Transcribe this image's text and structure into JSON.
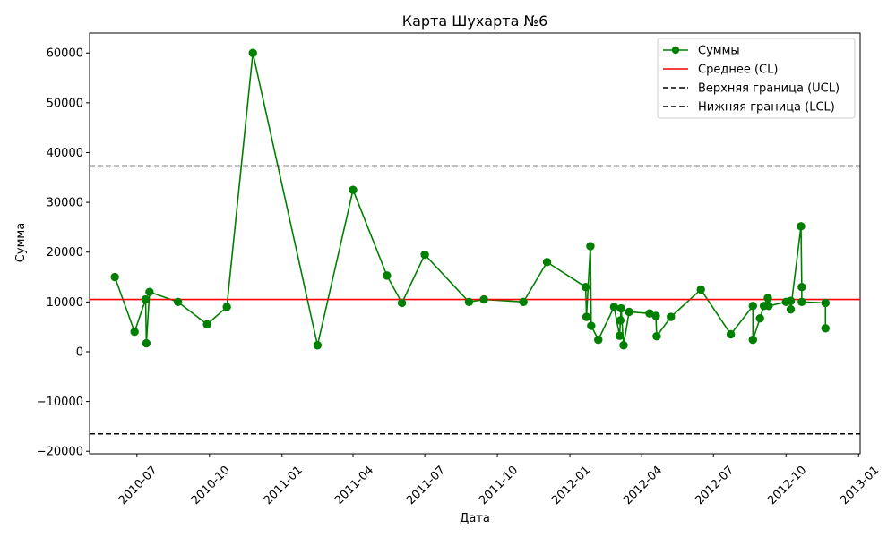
{
  "chart_data": {
    "type": "line",
    "title": "Карта Шухарта №6",
    "xlabel": "Дата",
    "ylabel": "Сумма",
    "xlim": [
      "2010-05-02",
      "2013-01-03"
    ],
    "ylim": [
      -20500,
      64000
    ],
    "xticks": [
      "2010-07",
      "2010-10",
      "2011-01",
      "2011-04",
      "2011-07",
      "2011-10",
      "2012-01",
      "2012-04",
      "2012-07",
      "2012-10",
      "2013-01"
    ],
    "xtick_dates": [
      "2010-07-01",
      "2010-10-01",
      "2011-01-01",
      "2011-04-01",
      "2011-07-01",
      "2011-10-01",
      "2012-01-01",
      "2012-04-01",
      "2012-07-01",
      "2012-10-01",
      "2013-01-01"
    ],
    "yticks": [
      "−20000",
      "−10000",
      "0",
      "10000",
      "20000",
      "30000",
      "40000",
      "50000",
      "60000"
    ],
    "ytick_values": [
      -20000,
      -10000,
      0,
      10000,
      20000,
      30000,
      40000,
      50000,
      60000
    ],
    "legend_position": "upper-right",
    "series": [
      {
        "name": "Суммы",
        "color": "#008000",
        "marker": "circle",
        "x": [
          "2010-06-03",
          "2010-06-28",
          "2010-07-12",
          "2010-07-13",
          "2010-07-17",
          "2010-08-22",
          "2010-09-28",
          "2010-10-23",
          "2010-11-25",
          "2011-02-15",
          "2011-04-01",
          "2011-05-14",
          "2011-06-02",
          "2011-07-01",
          "2011-08-26",
          "2011-09-14",
          "2011-11-03",
          "2011-12-03",
          "2012-01-21",
          "2012-01-22",
          "2012-01-27",
          "2012-01-28",
          "2012-02-06",
          "2012-02-26",
          "2012-03-04",
          "2012-03-05",
          "2012-03-06",
          "2012-03-09",
          "2012-03-16",
          "2012-04-11",
          "2012-04-19",
          "2012-04-20",
          "2012-05-08",
          "2012-06-15",
          "2012-07-23",
          "2012-08-20",
          "2012-08-20",
          "2012-08-29",
          "2012-09-03",
          "2012-09-08",
          "2012-09-09",
          "2012-10-01",
          "2012-10-07",
          "2012-10-07",
          "2012-10-20",
          "2012-10-21",
          "2012-10-21",
          "2012-11-20",
          "2012-11-20"
        ],
        "values": [
          15000,
          4000,
          10500,
          1700,
          12000,
          10000,
          5500,
          9000,
          60000,
          1300,
          32500,
          15300,
          9800,
          19500,
          10000,
          10500,
          10000,
          18000,
          13000,
          7000,
          21200,
          5200,
          2400,
          9000,
          3200,
          6300,
          8700,
          1300,
          8000,
          7700,
          7200,
          3100,
          7000,
          12500,
          3500,
          9200,
          2400,
          6700,
          9200,
          10800,
          9200,
          10000,
          10200,
          8500,
          25200,
          13000,
          10000,
          9800,
          4700
        ]
      },
      {
        "name": "Среднее (CL)",
        "color": "#ff0000",
        "value": 10500
      },
      {
        "name": "Верхняя граница (UCL)",
        "color": "#000000",
        "value": 37300
      },
      {
        "name": "Нижняя граница (LCL)",
        "color": "#000000",
        "value": -16500
      }
    ]
  }
}
